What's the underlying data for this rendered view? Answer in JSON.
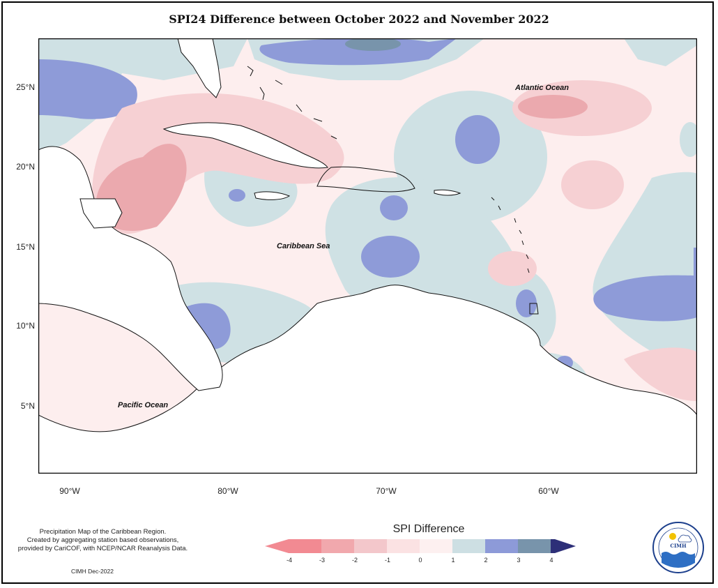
{
  "title": "SPI24 Difference between October 2022 and November 2022",
  "y_axis_labels": [
    "25°N",
    "20°N",
    "15°N",
    "10°N",
    "5°N"
  ],
  "x_axis_labels": [
    "90°W",
    "80°W",
    "70°W",
    "60°W"
  ],
  "ocean_labels": {
    "atlantic": "Atlantic Ocean",
    "caribbean": "Caribbean Sea",
    "pacific": "Pacific Ocean"
  },
  "footer_note": {
    "line1": "Precipitation Map of the Caribbean Region.",
    "line2": "Created by aggregating station based observations,",
    "line3": "provided by CariCOF, with NCEP/NCAR Reanalysis Data."
  },
  "credit": "CIMH Dec-2022",
  "legend": {
    "title": "SPI Difference",
    "ticks": [
      "-4",
      "-3",
      "-2",
      "-1",
      "0",
      "1",
      "2",
      "3",
      "4"
    ],
    "colors": [
      "#f28a92",
      "#f1a8ad",
      "#f3c7cb",
      "#fbe2e3",
      "#fdf0f0",
      "#cddfe3",
      "#8d9ad8",
      "#7894ab",
      "#56608f",
      "#2d2f78"
    ]
  },
  "logo": {
    "text": "CIMH"
  }
}
